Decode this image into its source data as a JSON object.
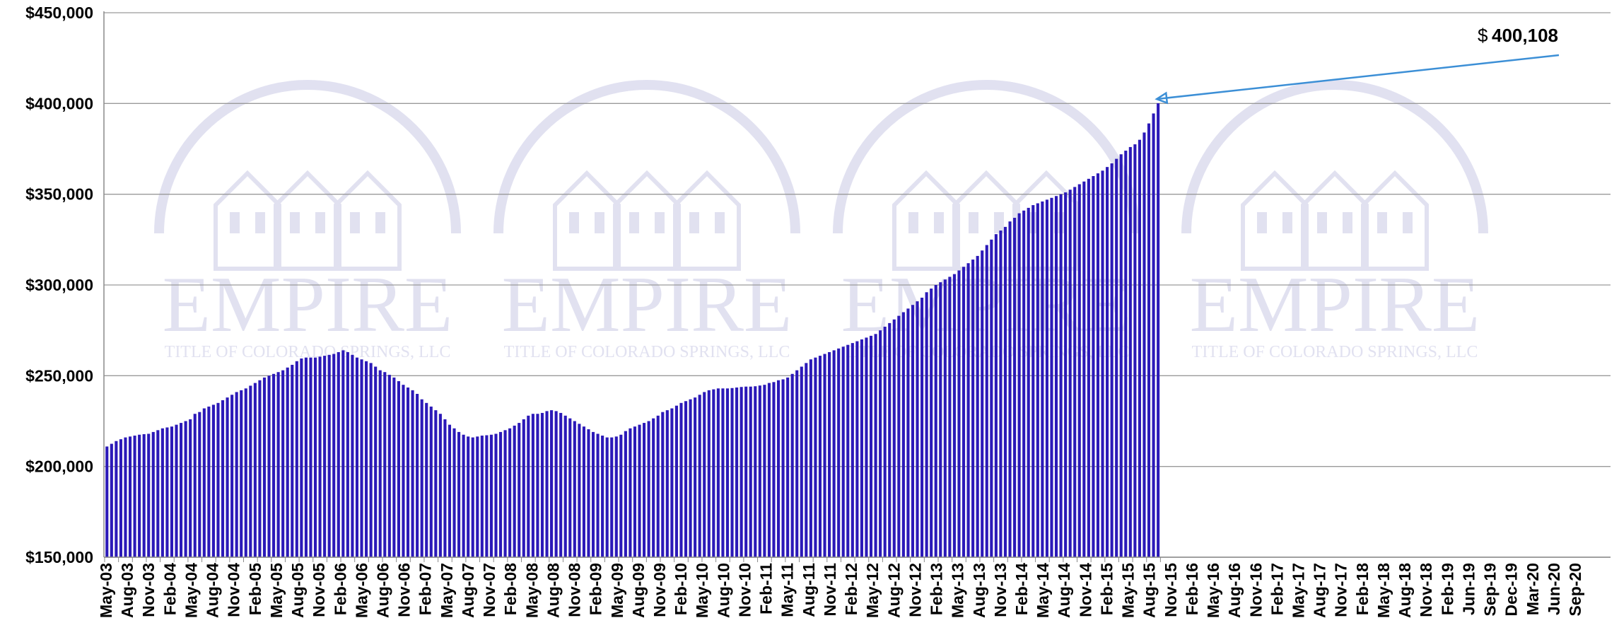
{
  "watermark": {
    "brand": "EMPIRE",
    "subtitle": "TITLE OF COLORADO SPRINGS, LLC",
    "color": "#d7d7ec"
  },
  "annotation": {
    "label_prefix": "$",
    "label_value": "400,108",
    "arrow_color": "#3c8fd6"
  },
  "chart_data": {
    "type": "bar",
    "title": "",
    "xlabel": "",
    "ylabel": "",
    "ylim": [
      150000,
      450000
    ],
    "grid": true,
    "bar_color": "#2b19b8",
    "y_ticks": [
      "$150,000",
      "$200,000",
      "$250,000",
      "$300,000",
      "$350,000",
      "$400,000",
      "$450,000"
    ],
    "y_tick_values": [
      150000,
      200000,
      250000,
      300000,
      350000,
      400000,
      450000
    ],
    "x_tick_labels": [
      "May-03",
      "Aug-03",
      "Nov-03",
      "Feb-04",
      "May-04",
      "Aug-04",
      "Nov-04",
      "Feb-05",
      "May-05",
      "Aug-05",
      "Nov-05",
      "Feb-06",
      "May-06",
      "Aug-06",
      "Nov-06",
      "Feb-07",
      "May-07",
      "Aug-07",
      "Nov-07",
      "Feb-08",
      "May-08",
      "Aug-08",
      "Nov-08",
      "Feb-09",
      "May-09",
      "Aug-09",
      "Nov-09",
      "Feb-10",
      "May-10",
      "Aug-10",
      "Nov-10",
      "Feb-11",
      "May-11",
      "Aug-11",
      "Nov-11",
      "Feb-12",
      "May-12",
      "Aug-12",
      "Nov-12",
      "Feb-13",
      "May-13",
      "Aug-13",
      "Nov-13",
      "Feb-14",
      "May-14",
      "Aug-14",
      "Nov-14",
      "Feb-15",
      "May-15",
      "Aug-15",
      "Nov-15",
      "Feb-16",
      "May-16",
      "Aug-16",
      "Nov-16",
      "Feb-17",
      "May-17",
      "Aug-17",
      "Nov-17",
      "Feb-18",
      "May-18",
      "Aug-18",
      "Nov-18",
      "Feb-19",
      "Jun-19",
      "Sep-19",
      "Dec-19",
      "Mar-20",
      "Jun-20",
      "Sep-20"
    ],
    "values": [
      211000,
      212500,
      214000,
      215000,
      216000,
      216500,
      217000,
      217500,
      217800,
      218000,
      219000,
      220000,
      221000,
      221500,
      222000,
      223000,
      224000,
      225000,
      226000,
      229000,
      230000,
      232000,
      233000,
      234000,
      235000,
      236500,
      238000,
      239500,
      241000,
      242000,
      243000,
      244500,
      246000,
      247500,
      249000,
      250000,
      251000,
      252000,
      253000,
      254500,
      256000,
      258000,
      259500,
      260000,
      260000,
      260000,
      260500,
      261000,
      261500,
      262000,
      263000,
      264000,
      263000,
      261500,
      260000,
      259000,
      258000,
      257000,
      255000,
      253000,
      252000,
      250500,
      249000,
      247000,
      245000,
      243500,
      242000,
      240000,
      237000,
      235000,
      233000,
      231000,
      229000,
      226000,
      223000,
      221000,
      219000,
      217500,
      216500,
      216000,
      216500,
      217000,
      217200,
      217500,
      218000,
      219000,
      220000,
      221000,
      222500,
      224000,
      226000,
      228000,
      229000,
      229000,
      229500,
      230500,
      231000,
      230500,
      229500,
      228000,
      226500,
      225000,
      223500,
      222000,
      220500,
      219000,
      218000,
      217000,
      216000,
      216000,
      216500,
      217500,
      219500,
      221000,
      222000,
      223000,
      224000,
      225000,
      226500,
      228000,
      230000,
      231000,
      232000,
      233500,
      235000,
      236000,
      237000,
      238000,
      239500,
      241000,
      242000,
      242500,
      243000,
      243000,
      243000,
      243200,
      243500,
      243800,
      244000,
      244000,
      244200,
      244600,
      245000,
      246000,
      246500,
      247500,
      248000,
      249000,
      251000,
      253000,
      255000,
      257000,
      259000,
      260000,
      261000,
      262000,
      263000,
      264000,
      265000,
      266000,
      267000,
      268000,
      269000,
      270000,
      271000,
      272000,
      273000,
      275000,
      277000,
      279000,
      281000,
      283000,
      285000,
      287000,
      289000,
      291000,
      293000,
      296000,
      298000,
      300000,
      301500,
      303000,
      304500,
      306000,
      308000,
      310000,
      312000,
      314000,
      316000,
      319000,
      322000,
      325000,
      328000,
      330000,
      332000,
      335000,
      337000,
      339500,
      341000,
      342500,
      344000,
      345000,
      346000,
      347000,
      348000,
      349000,
      350000,
      351000,
      352500,
      354000,
      355500,
      357000,
      358500,
      360000,
      361500,
      363000,
      365000,
      367000,
      369500,
      372000,
      374000,
      376000,
      377500,
      380000,
      384000,
      389000,
      394500,
      400108
    ]
  }
}
